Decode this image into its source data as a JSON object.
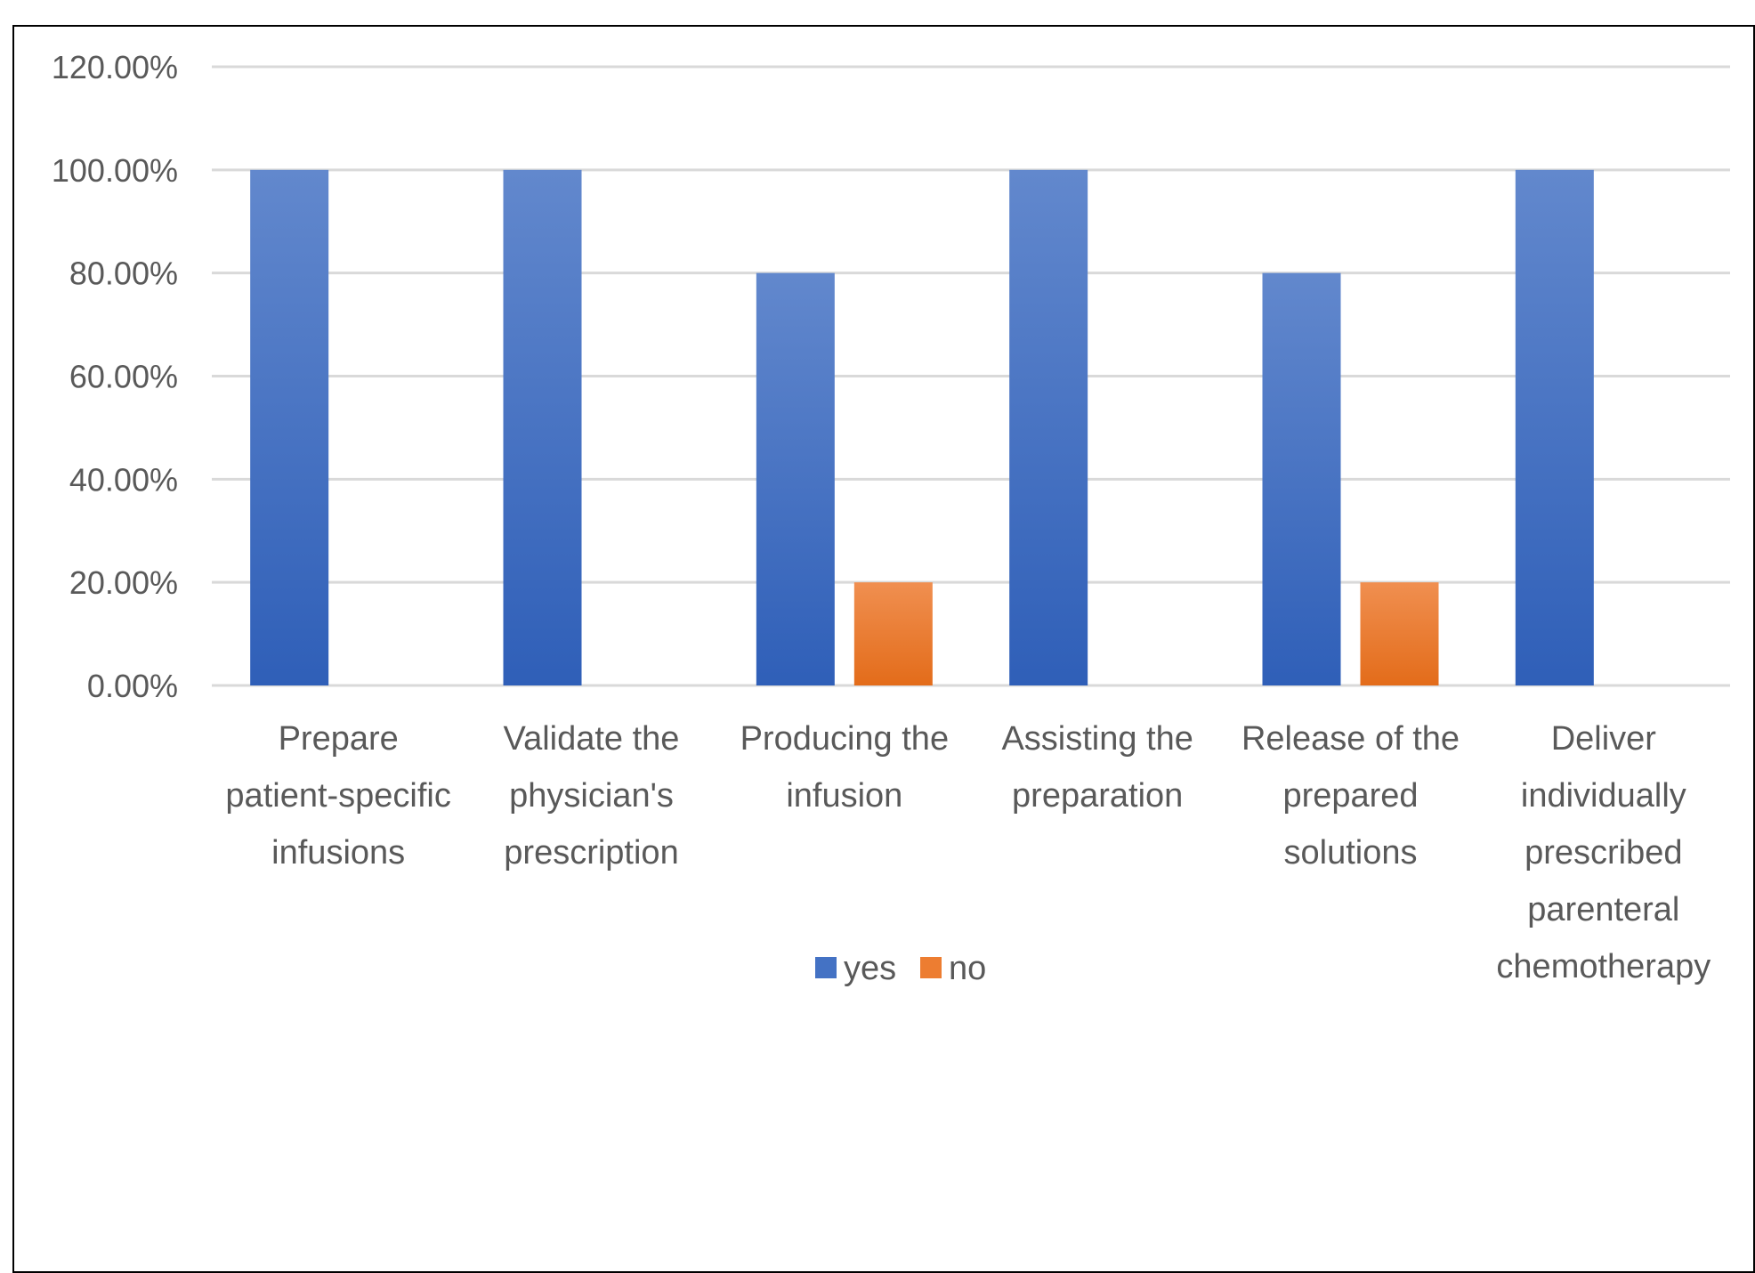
{
  "chart_data": {
    "type": "bar",
    "title": "",
    "xlabel": "",
    "ylabel": "",
    "categories": [
      [
        "Prepare",
        "patient-specific",
        "infusions"
      ],
      [
        "Validate the",
        "physician's",
        "prescription"
      ],
      [
        "Producing the",
        "infusion"
      ],
      [
        "Assisting the",
        "preparation"
      ],
      [
        "Release of the",
        "prepared",
        "solutions"
      ],
      [
        "Deliver",
        "individually",
        "prescribed",
        "parenteral",
        "chemotherapy"
      ]
    ],
    "series": [
      {
        "name": "yes",
        "values": [
          100,
          100,
          80,
          100,
          80,
          100
        ],
        "color": "#4472C4"
      },
      {
        "name": "no",
        "values": [
          0,
          0,
          20,
          0,
          20,
          0
        ],
        "color": "#ED7D31"
      }
    ],
    "ylim": [
      0,
      120
    ],
    "yticks": [
      "0.00%",
      "20.00%",
      "40.00%",
      "60.00%",
      "80.00%",
      "100.00%",
      "120.00%"
    ],
    "grid": true,
    "legend": "bottom"
  }
}
